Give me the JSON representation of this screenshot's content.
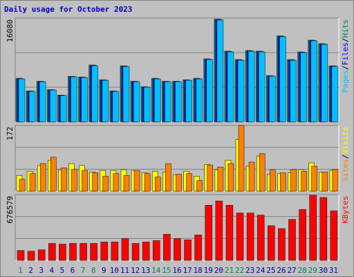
{
  "title": "Daily usage for October 2023",
  "chart_data": [
    {
      "type": "bar",
      "ylim": [
        0,
        16080
      ],
      "yticks": [
        16080
      ],
      "separator": "/",
      "series": [
        {
          "name": "Hits",
          "color": "#00805c",
          "values": [
            6750,
            4800,
            6300,
            5000,
            4150,
            7050,
            6950,
            8800,
            6520,
            4800,
            8680,
            6300,
            5450,
            6750,
            6300,
            6300,
            6520,
            6750,
            9760,
            15900,
            10950,
            9650,
            11050,
            10950,
            7170,
            13320,
            9650,
            10830,
            12660,
            12120,
            8680
          ]
        },
        {
          "name": "Files",
          "color": "#0000ff",
          "values": [
            6700,
            4760,
            6260,
            4970,
            4110,
            7010,
            6900,
            8740,
            6480,
            4760,
            8630,
            6260,
            5400,
            6700,
            6260,
            6260,
            6480,
            6700,
            9700,
            15830,
            10890,
            9600,
            10990,
            10890,
            7120,
            13250,
            9600,
            10780,
            12600,
            12060,
            8630
          ]
        },
        {
          "name": "Pages",
          "color": "#00c0ff",
          "values": [
            6646,
            4717,
            6218,
            4931,
            4074,
            6968,
            6861,
            8683,
            6432,
            4717,
            8576,
            6218,
            5360,
            6646,
            6218,
            6218,
            6432,
            6646,
            9648,
            15758,
            10827,
            9541,
            10934,
            10827,
            7075,
            13186,
            9541,
            10720,
            12542,
            12006,
            8576
          ]
        }
      ]
    },
    {
      "type": "bar",
      "ylim": [
        0,
        172
      ],
      "yticks": [
        172
      ],
      "separator": "/",
      "series": [
        {
          "name": "Visits",
          "color": "#ffff00",
          "values": [
            41,
            52,
            67,
            81,
            56,
            72,
            67,
            50,
            54,
            54,
            56,
            54,
            48,
            52,
            50,
            43,
            52,
            39,
            70,
            56,
            81,
            135,
            65,
            91,
            44,
            46,
            48,
            56,
            74,
            50,
            54
          ]
        },
        {
          "name": "Sites",
          "color": "#ff8000",
          "values": [
            31,
            46,
            72,
            89,
            61,
            57,
            54,
            48,
            39,
            46,
            41,
            54,
            46,
            37,
            72,
            44,
            46,
            28,
            68,
            63,
            72,
            172,
            76,
            98,
            56,
            48,
            57,
            52,
            65,
            50,
            57
          ]
        }
      ]
    },
    {
      "type": "bar",
      "ylim": [
        0,
        676579
      ],
      "yticks": [
        676579
      ],
      "categories": [
        "1",
        "2",
        "3",
        "4",
        "5",
        "6",
        "7",
        "8",
        "9",
        "10",
        "11",
        "12",
        "13",
        "14",
        "15",
        "16",
        "17",
        "18",
        "19",
        "20",
        "21",
        "22",
        "23",
        "24",
        "25",
        "26",
        "27",
        "28",
        "29",
        "30",
        "31"
      ],
      "category_colors": [
        "#00805c",
        "#0000a0",
        "#0000a0",
        "#0000a0",
        "#0000a0",
        "#0000a0",
        "#00805c",
        "#00805c",
        "#0000a0",
        "#0000a0",
        "#0000a0",
        "#0000a0",
        "#0000a0",
        "#00805c",
        "#00805c",
        "#0000a0",
        "#0000a0",
        "#0000a0",
        "#0000a0",
        "#0000a0",
        "#00805c",
        "#00805c",
        "#0000a0",
        "#0000a0",
        "#0000a0",
        "#0000a0",
        "#0000a0",
        "#00805c",
        "#00805c",
        "#0000a0",
        "#0000a0"
      ],
      "series": [
        {
          "name": "KBytes",
          "color": "#ff0000",
          "values": [
            101850,
            94575,
            109125,
            174600,
            167325,
            174600,
            174600,
            174600,
            189150,
            189150,
            225525,
            174600,
            189150,
            203700,
            269175,
            225525,
            210975,
            261900,
            567450,
            611100,
            567450,
            487425,
            487425,
            465600,
            356475,
            327375,
            421950,
            523800,
            669300,
            647475,
            509250
          ]
        }
      ]
    }
  ]
}
